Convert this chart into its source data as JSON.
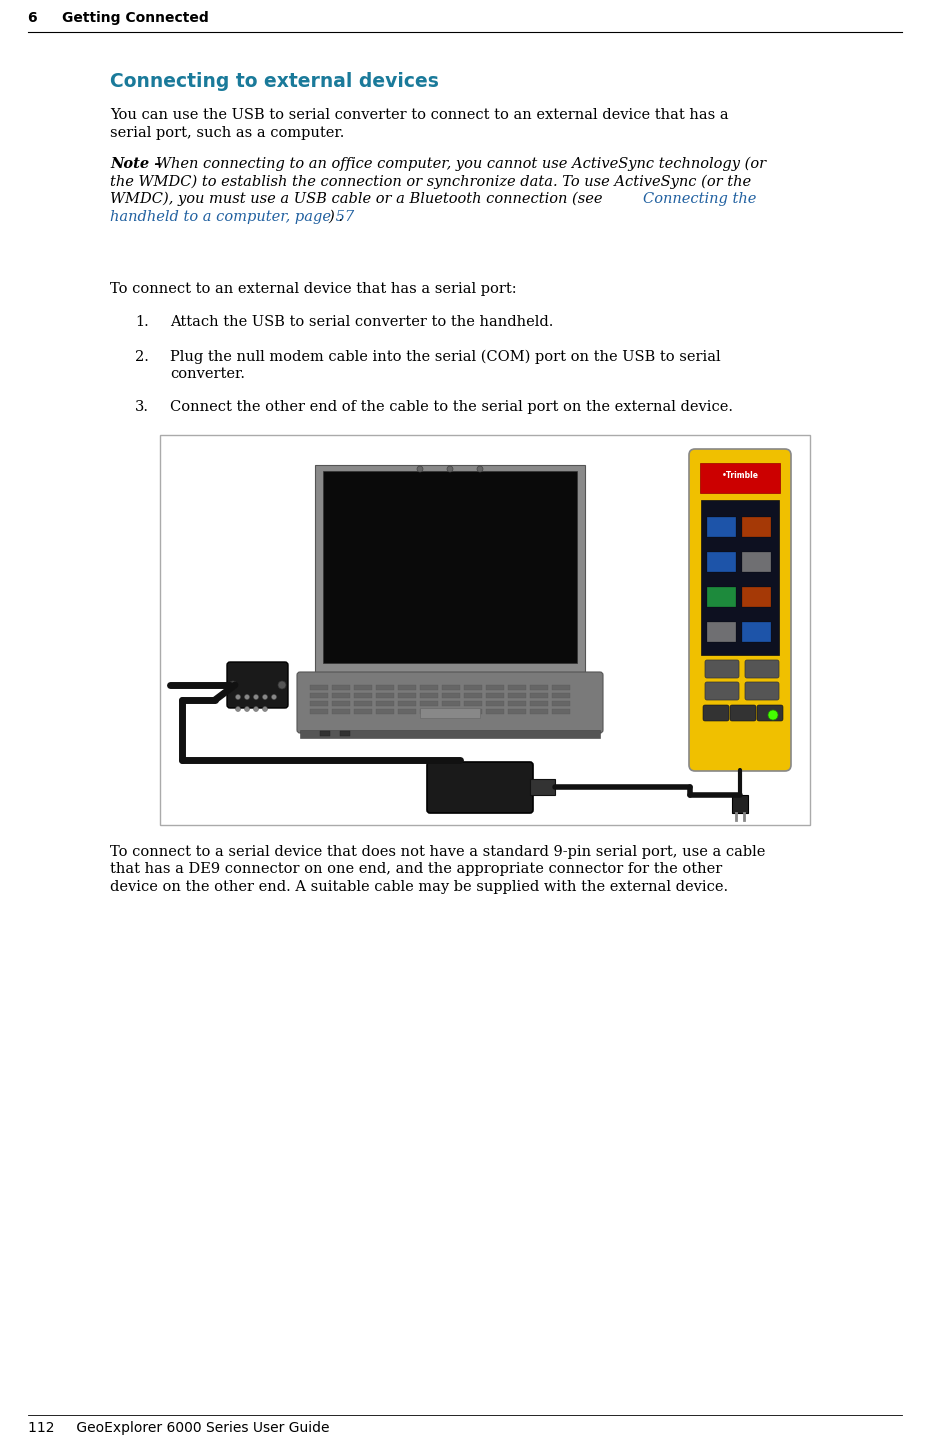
{
  "page_bg": "#ffffff",
  "header_text": "6     Getting Connected",
  "header_line_color": "#000000",
  "footer_text": "112     GeoExplorer 6000 Series User Guide",
  "section_title": "Connecting to external devices",
  "section_title_color": "#1a7a9a",
  "body_text_color": "#000000",
  "note_link_color": "#2060a0",
  "para1_line1": "You can use the USB to serial converter to connect to an external device that has a",
  "para1_line2": "serial port, such as a computer.",
  "note_bold_part": "Note – ",
  "note_italic_line1": "When connecting to an office computer, you cannot use ActiveSync technology (or",
  "note_italic_line2": "the WMDC) to establish the connection or synchronize data. To use ActiveSync (or the",
  "note_italic_line3": "WMDC), you must use a USB cable or a Bluetooth connection (see ",
  "note_link_part1": "Connecting the",
  "note_link_part2": "handheld to a computer, page 57",
  "note_end_part": ") .",
  "para2": "To connect to an external device that has a serial port:",
  "list1": "Attach the USB to serial converter to the handheld.",
  "list2a": "Plug the null modem cable into the serial (COM) port on the USB to serial",
  "list2b": "converter.",
  "list3": "Connect the other end of the cable to the serial port on the external device.",
  "para3_line1": "To connect to a serial device that does not have a standard 9-pin serial port, use a cable",
  "para3_line2": "that has a DE9 connector on one end, and the appropriate connector for the other",
  "para3_line3": "device on the other end. A suitable cable may be supplied with the external device.",
  "img_box_edge": "#aaaaaa",
  "img_box_bg": "#ffffff",
  "laptop_body_color": "#888888",
  "laptop_screen_color": "#111111",
  "laptop_base_color": "#777777",
  "handheld_yellow": "#f0c000",
  "handheld_dark": "#222222",
  "cable_color": "#111111",
  "connector_color": "#222222"
}
